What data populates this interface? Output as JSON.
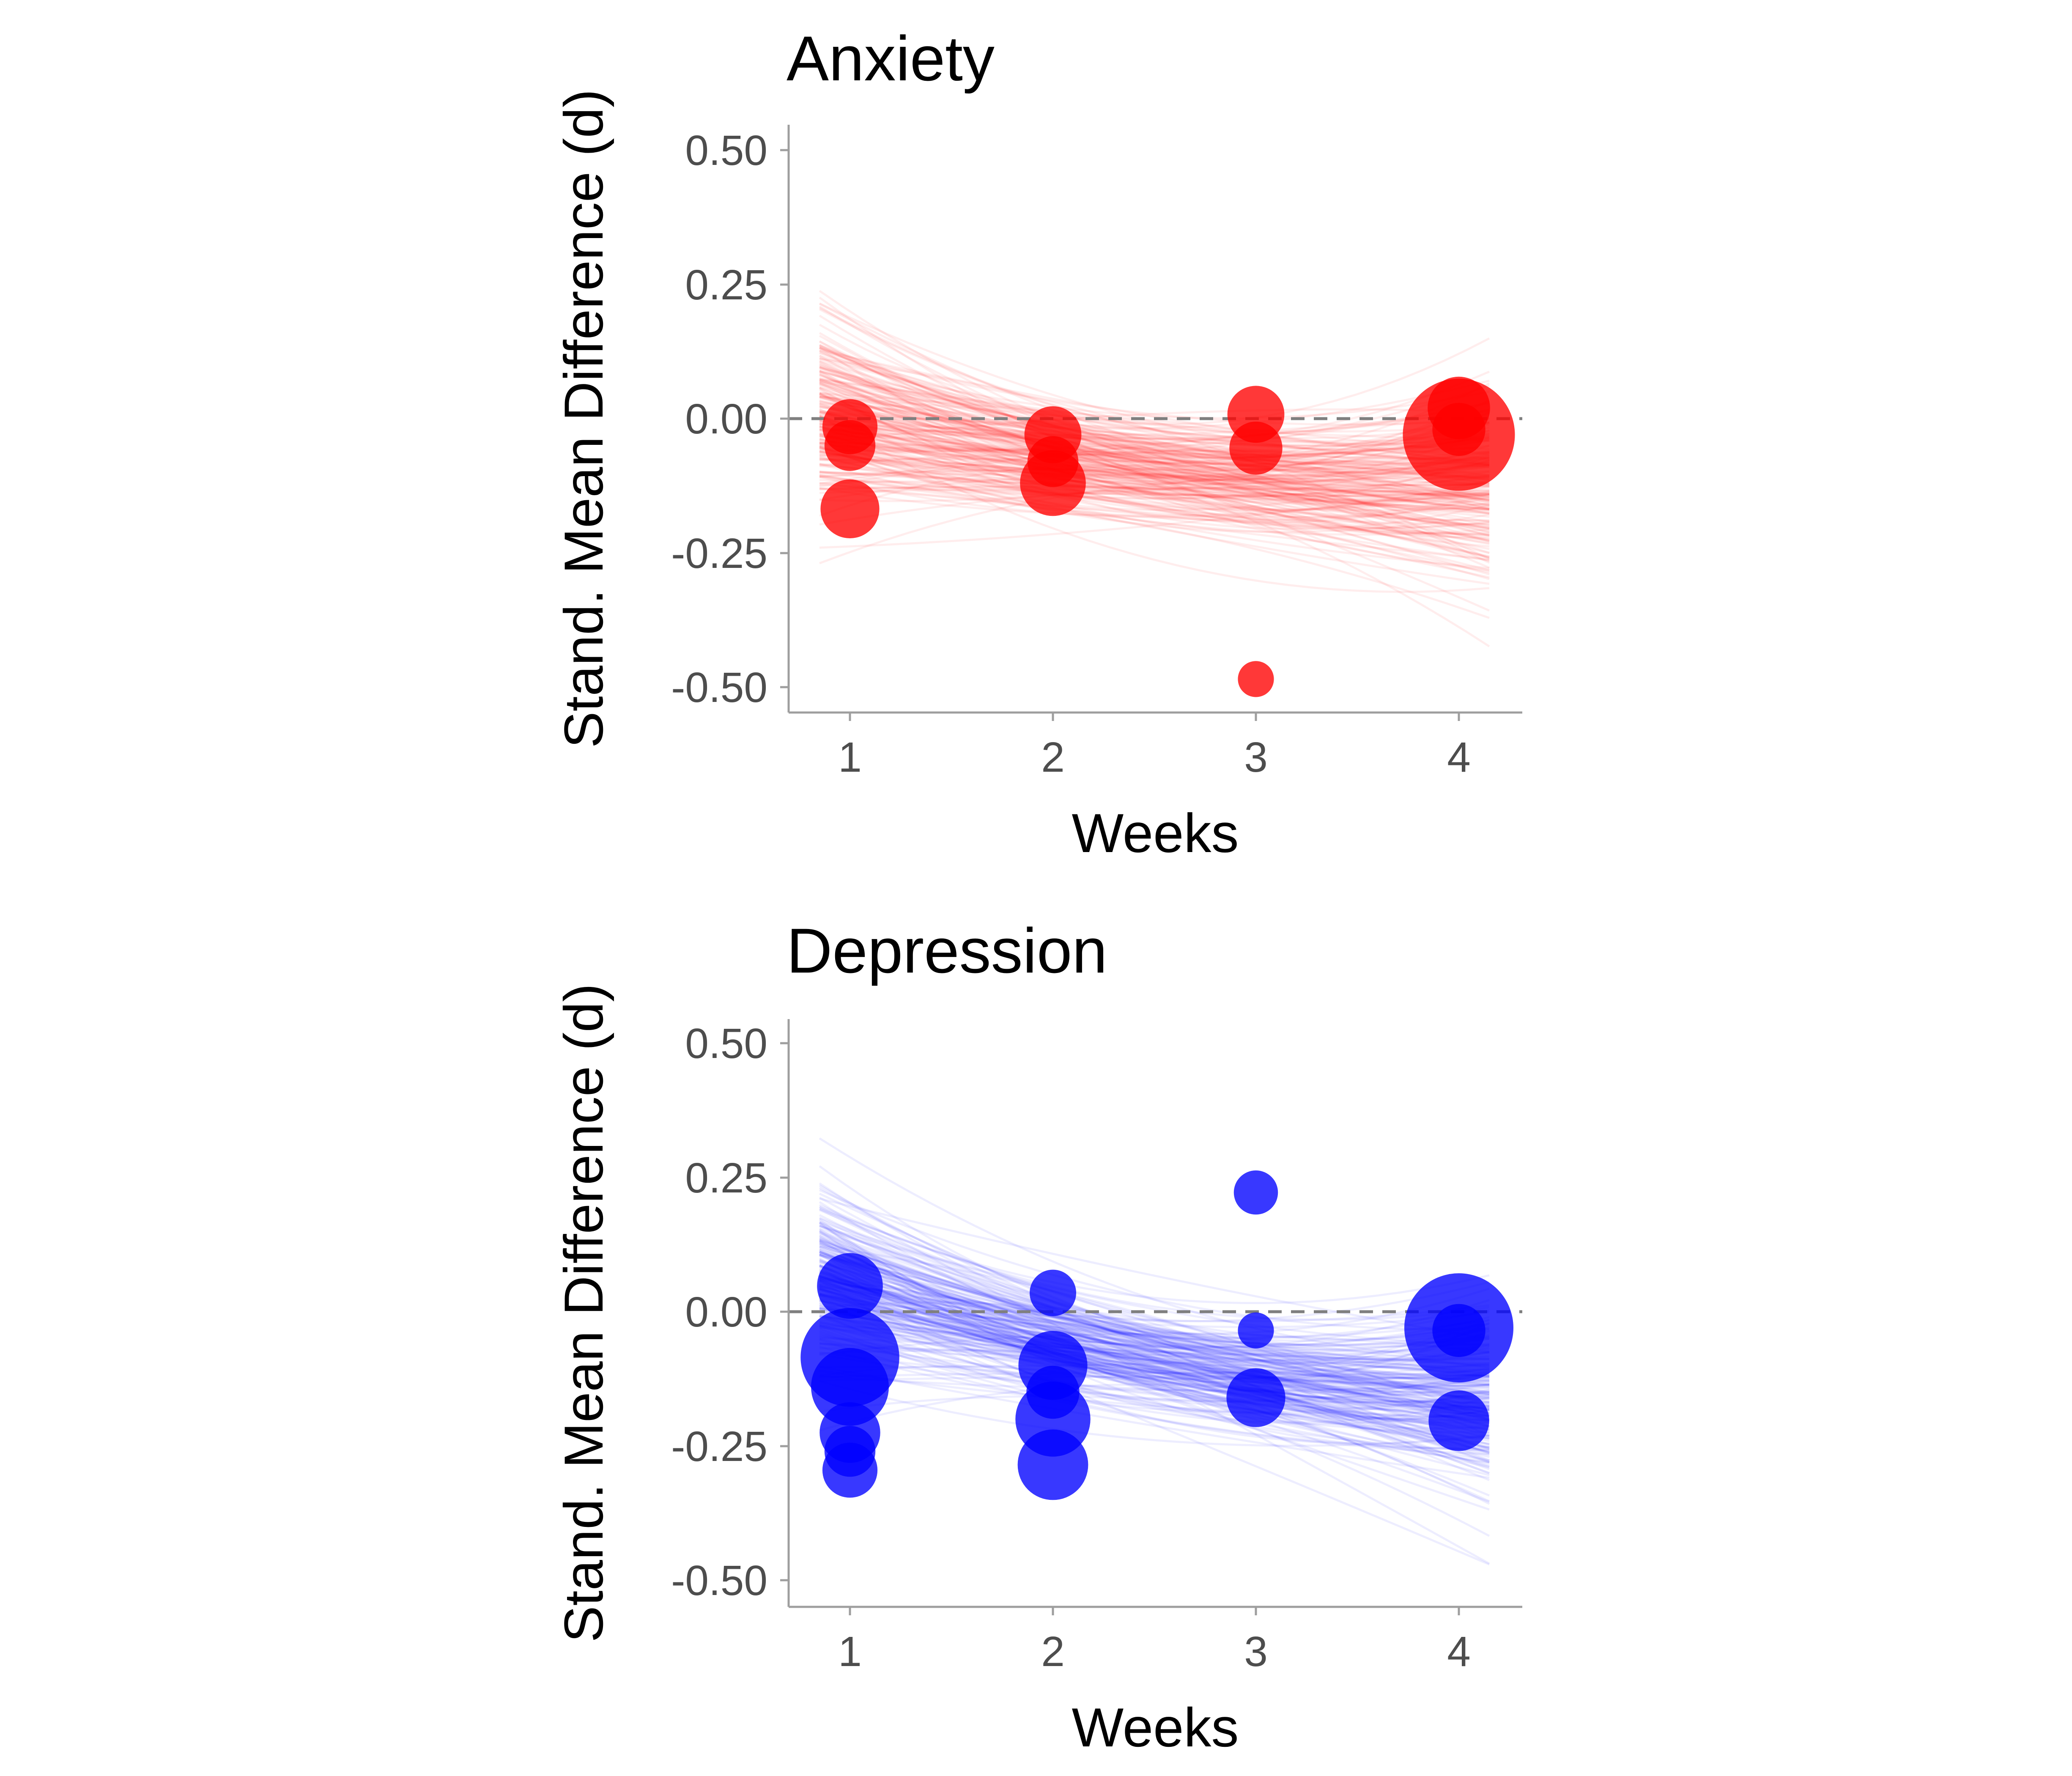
{
  "chart_data": [
    {
      "type": "scatter",
      "title": "Anxiety",
      "xlabel": "Weeks",
      "ylabel": "Stand. Mean Difference (d)",
      "xlim": [
        0.7,
        4.3
      ],
      "ylim": [
        -0.55,
        0.55
      ],
      "x_ticks": [
        1,
        2,
        3,
        4
      ],
      "x_tick_labels": [
        "1",
        "2",
        "3",
        "4"
      ],
      "y_ticks": [
        0.5,
        0.25,
        0,
        -0.25,
        -0.5
      ],
      "y_tick_labels": [
        "0.50",
        "0.25",
        "0.00",
        "-0.25",
        "-0.50"
      ],
      "reference_line_y": 0,
      "color": "#ff0000",
      "grid": false,
      "legend": "none",
      "trend": {
        "intercept": -0.0933,
        "linear": -0.0433,
        "quadratic": 0.0133
      },
      "points": [
        {
          "x": 1,
          "y": -0.015,
          "weight": 1.4
        },
        {
          "x": 1,
          "y": -0.05,
          "weight": 1.2
        },
        {
          "x": 1,
          "y": -0.168,
          "weight": 1.6
        },
        {
          "x": 2,
          "y": -0.03,
          "weight": 1.5
        },
        {
          "x": 2,
          "y": -0.08,
          "weight": 1.2
        },
        {
          "x": 2,
          "y": -0.12,
          "weight": 2.0
        },
        {
          "x": 3,
          "y": 0.008,
          "weight": 1.5
        },
        {
          "x": 3,
          "y": -0.055,
          "weight": 1.3
        },
        {
          "x": 3,
          "y": -0.485,
          "weight": 0.6
        },
        {
          "x": 4,
          "y": 0.02,
          "weight": 1.8
        },
        {
          "x": 4,
          "y": -0.02,
          "weight": 1.3
        },
        {
          "x": 4,
          "y": -0.03,
          "weight": 5.8
        }
      ]
    },
    {
      "type": "scatter",
      "title": "Depression",
      "xlabel": "Weeks",
      "ylabel": "Stand. Mean Difference (d)",
      "xlim": [
        0.7,
        4.3
      ],
      "ylim": [
        -0.55,
        0.55
      ],
      "x_ticks": [
        1,
        2,
        3,
        4
      ],
      "x_tick_labels": [
        "1",
        "2",
        "3",
        "4"
      ],
      "y_ticks": [
        0.5,
        0.25,
        0,
        -0.25,
        -0.5
      ],
      "y_tick_labels": [
        "0.50",
        "0.25",
        "0.00",
        "-0.25",
        "-0.50"
      ],
      "reference_line_y": 0,
      "color": "#0000ff",
      "grid": false,
      "legend": "none",
      "trend": {
        "intercept": -0.0967,
        "linear": -0.0658,
        "quadratic": 0.0142
      },
      "points": [
        {
          "x": 1,
          "y": 0.048,
          "weight": 2.0
        },
        {
          "x": 1,
          "y": -0.085,
          "weight": 4.5
        },
        {
          "x": 1,
          "y": -0.14,
          "weight": 2.8
        },
        {
          "x": 1,
          "y": -0.225,
          "weight": 1.7
        },
        {
          "x": 1,
          "y": -0.26,
          "weight": 1.2
        },
        {
          "x": 1,
          "y": -0.295,
          "weight": 1.4
        },
        {
          "x": 2,
          "y": 0.035,
          "weight": 1.0
        },
        {
          "x": 2,
          "y": -0.1,
          "weight": 2.2
        },
        {
          "x": 2,
          "y": -0.15,
          "weight": 1.3
        },
        {
          "x": 2,
          "y": -0.2,
          "weight": 2.6
        },
        {
          "x": 2,
          "y": -0.285,
          "weight": 2.3
        },
        {
          "x": 3,
          "y": 0.222,
          "weight": 0.9
        },
        {
          "x": 3,
          "y": -0.035,
          "weight": 0.6
        },
        {
          "x": 3,
          "y": -0.16,
          "weight": 1.6
        },
        {
          "x": 4,
          "y": -0.035,
          "weight": 1.3
        },
        {
          "x": 4,
          "y": -0.03,
          "weight": 5.5
        },
        {
          "x": 4,
          "y": -0.203,
          "weight": 1.7
        }
      ]
    }
  ]
}
